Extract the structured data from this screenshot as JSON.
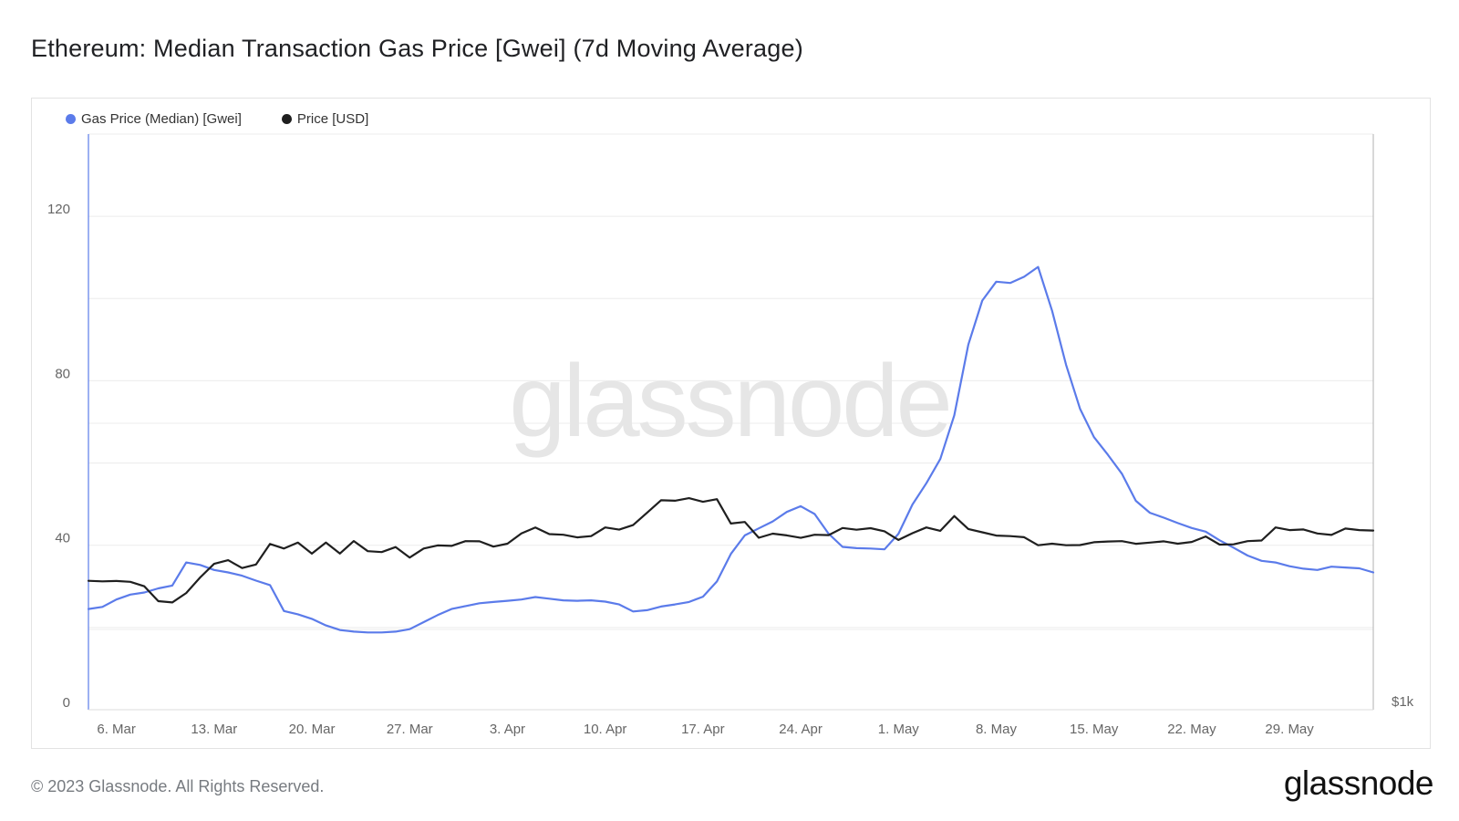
{
  "title": "Ethereum: Median Transaction Gas Price [Gwei] (7d Moving Average)",
  "footer": {
    "copyright": "© 2023 Glassnode. All Rights Reserved.",
    "logo": "glassnode"
  },
  "watermark": "glassnode",
  "colors": {
    "gas": "#5b7bea",
    "price": "#1f1f1f",
    "grid": "#ececec",
    "axis_text": "#666666"
  },
  "chart_data": {
    "type": "line",
    "title": "Ethereum: Median Transaction Gas Price [Gwei] (7d Moving Average)",
    "legend_position": "top-left",
    "grid": true,
    "x_ticks": [
      "6. Mar",
      "13. Mar",
      "20. Mar",
      "27. Mar",
      "3. Apr",
      "10. Apr",
      "17. Apr",
      "24. Apr",
      "1. May",
      "8. May",
      "15. May",
      "22. May",
      "29. May"
    ],
    "x_range": [
      "2023-03-04",
      "2023-06-04"
    ],
    "y_left": {
      "ticks": [
        0,
        40,
        80,
        120
      ],
      "range": [
        0,
        140
      ],
      "label": ""
    },
    "y_right": {
      "ticks": [
        "$1k"
      ],
      "label": ""
    },
    "series": [
      {
        "name": "Gas Price (Median) [Gwei]",
        "axis": "left",
        "x": [
          "2023-03-04",
          "2023-03-05",
          "2023-03-06",
          "2023-03-07",
          "2023-03-08",
          "2023-03-09",
          "2023-03-10",
          "2023-03-11",
          "2023-03-12",
          "2023-03-13",
          "2023-03-14",
          "2023-03-15",
          "2023-03-16",
          "2023-03-17",
          "2023-03-18",
          "2023-03-19",
          "2023-03-20",
          "2023-03-21",
          "2023-03-22",
          "2023-03-23",
          "2023-03-24",
          "2023-03-25",
          "2023-03-26",
          "2023-03-27",
          "2023-03-28",
          "2023-03-29",
          "2023-03-30",
          "2023-03-31",
          "2023-04-01",
          "2023-04-02",
          "2023-04-03",
          "2023-04-04",
          "2023-04-05",
          "2023-04-06",
          "2023-04-07",
          "2023-04-08",
          "2023-04-09",
          "2023-04-10",
          "2023-04-11",
          "2023-04-12",
          "2023-04-13",
          "2023-04-14",
          "2023-04-15",
          "2023-04-16",
          "2023-04-17",
          "2023-04-18",
          "2023-04-19",
          "2023-04-20",
          "2023-04-21",
          "2023-04-22",
          "2023-04-23",
          "2023-04-24",
          "2023-04-25",
          "2023-04-26",
          "2023-04-27",
          "2023-04-28",
          "2023-04-29",
          "2023-04-30",
          "2023-05-01",
          "2023-05-02",
          "2023-05-03",
          "2023-05-04",
          "2023-05-05",
          "2023-05-06",
          "2023-05-07",
          "2023-05-08",
          "2023-05-09",
          "2023-05-10",
          "2023-05-11",
          "2023-05-12",
          "2023-05-13",
          "2023-05-14",
          "2023-05-15",
          "2023-05-16",
          "2023-05-17",
          "2023-05-18",
          "2023-05-19",
          "2023-05-20",
          "2023-05-21",
          "2023-05-22",
          "2023-05-23",
          "2023-05-24",
          "2023-05-25",
          "2023-05-26",
          "2023-05-27",
          "2023-05-28",
          "2023-05-29",
          "2023-05-30",
          "2023-05-31",
          "2023-06-01",
          "2023-06-02",
          "2023-06-03",
          "2023-06-04"
        ],
        "values": [
          24.5,
          25,
          26.8,
          28,
          28.5,
          29.5,
          30.2,
          35.8,
          35.2,
          34,
          33.4,
          32.6,
          31.4,
          30.3,
          24,
          23.2,
          22.1,
          20.5,
          19.4,
          19,
          18.8,
          18.8,
          19,
          19.6,
          21.3,
          23,
          24.5,
          25.2,
          25.9,
          26.2,
          26.5,
          26.8,
          27.4,
          27,
          26.6,
          26.5,
          26.6,
          26.3,
          25.6,
          23.9,
          24.2,
          25.1,
          25.6,
          26.2,
          27.5,
          31.2,
          37.9,
          42.4,
          44.1,
          45.8,
          48.1,
          49.5,
          47.6,
          42.8,
          39.6,
          39.3,
          39.2,
          39,
          42.8,
          49.9,
          55.1,
          61,
          71.6,
          88.8,
          99.5,
          104.1,
          103.8,
          105.3,
          107.7,
          97,
          83.9,
          73.2,
          66.3,
          62,
          57.4,
          50.8,
          47.9,
          46.7,
          45.4,
          44.2,
          43.3,
          41.2,
          39.4,
          37.5,
          36.2,
          35.8,
          34.9,
          34.3,
          34,
          34.8,
          34.6,
          34.4,
          33.4
        ]
      },
      {
        "name": "Price [USD]",
        "axis": "right",
        "x": [
          "2023-03-04",
          "2023-03-05",
          "2023-03-06",
          "2023-03-07",
          "2023-03-08",
          "2023-03-09",
          "2023-03-10",
          "2023-03-11",
          "2023-03-12",
          "2023-03-13",
          "2023-03-14",
          "2023-03-15",
          "2023-03-16",
          "2023-03-17",
          "2023-03-18",
          "2023-03-19",
          "2023-03-20",
          "2023-03-21",
          "2023-03-22",
          "2023-03-23",
          "2023-03-24",
          "2023-03-25",
          "2023-03-26",
          "2023-03-27",
          "2023-03-28",
          "2023-03-29",
          "2023-03-30",
          "2023-03-31",
          "2023-04-01",
          "2023-04-02",
          "2023-04-03",
          "2023-04-04",
          "2023-04-05",
          "2023-04-06",
          "2023-04-07",
          "2023-04-08",
          "2023-04-09",
          "2023-04-10",
          "2023-04-11",
          "2023-04-12",
          "2023-04-13",
          "2023-04-14",
          "2023-04-15",
          "2023-04-16",
          "2023-04-17",
          "2023-04-18",
          "2023-04-19",
          "2023-04-20",
          "2023-04-21",
          "2023-04-22",
          "2023-04-23",
          "2023-04-24",
          "2023-04-25",
          "2023-04-26",
          "2023-04-27",
          "2023-04-28",
          "2023-04-29",
          "2023-04-30",
          "2023-05-01",
          "2023-05-02",
          "2023-05-03",
          "2023-05-04",
          "2023-05-05",
          "2023-05-06",
          "2023-05-07",
          "2023-05-08",
          "2023-05-09",
          "2023-05-10",
          "2023-05-11",
          "2023-05-12",
          "2023-05-13",
          "2023-05-14",
          "2023-05-15",
          "2023-05-16",
          "2023-05-17",
          "2023-05-18",
          "2023-05-19",
          "2023-05-20",
          "2023-05-21",
          "2023-05-22",
          "2023-05-23",
          "2023-05-24",
          "2023-05-25",
          "2023-05-26",
          "2023-05-27",
          "2023-05-28",
          "2023-05-29",
          "2023-05-30",
          "2023-05-31",
          "2023-06-01",
          "2023-06-02",
          "2023-06-03",
          "2023-06-04"
        ],
        "values": [
          1568,
          1565,
          1567,
          1562,
          1533,
          1438,
          1430,
          1490,
          1590,
          1677,
          1700,
          1650,
          1673,
          1804,
          1775,
          1813,
          1742,
          1813,
          1743,
          1823,
          1758,
          1752,
          1784,
          1717,
          1775,
          1795,
          1792,
          1822,
          1821,
          1787,
          1806,
          1872,
          1910,
          1867,
          1863,
          1846,
          1854,
          1910,
          1896,
          1925,
          2004,
          2084,
          2081,
          2097,
          2074,
          2091,
          1935,
          1945,
          1844,
          1870,
          1859,
          1843,
          1863,
          1861,
          1906,
          1895,
          1905,
          1885,
          1830,
          1873,
          1910,
          1888,
          1983,
          1900,
          1879,
          1858,
          1854,
          1847,
          1796,
          1806,
          1796,
          1797,
          1815,
          1820,
          1822,
          1805,
          1813,
          1821,
          1806,
          1817,
          1852,
          1800,
          1802,
          1822,
          1826,
          1910,
          1893,
          1897,
          1871,
          1862,
          1903,
          1893,
          1890
        ]
      }
    ]
  }
}
